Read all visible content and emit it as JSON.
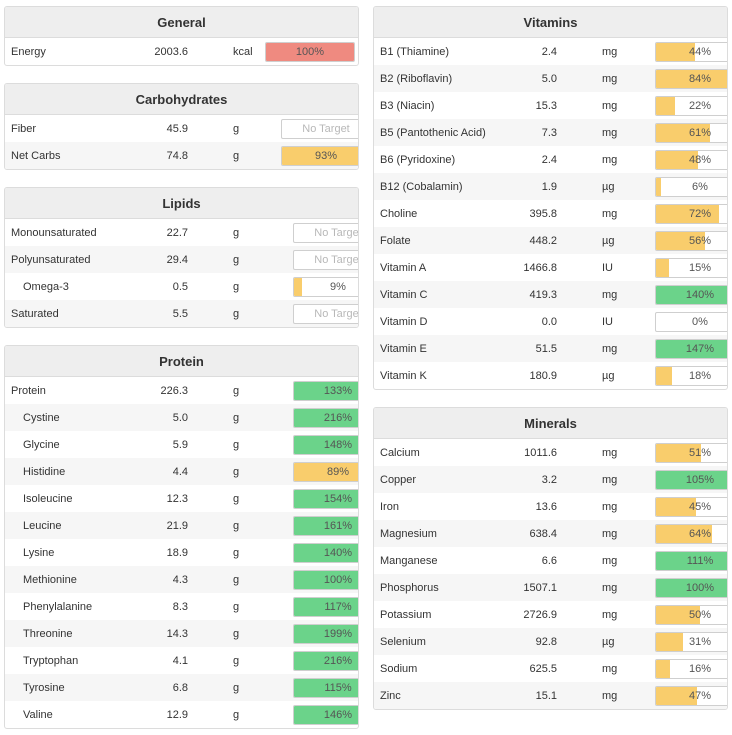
{
  "colors": {
    "over": "#ef8a80",
    "good": "#6bd38a",
    "partial": "#f9cd6c",
    "empty": "#ffffff",
    "border": "#dcdcdc",
    "header_bg": "#eeeeee"
  },
  "no_target_label": "No Target",
  "sections": {
    "general": {
      "title": "General",
      "rows": [
        {
          "name": "Energy",
          "amount": "2003.6",
          "unit": "kcal",
          "pct": 100,
          "label": "100%",
          "status": "over"
        }
      ]
    },
    "carbohydrates": {
      "title": "Carbohydrates",
      "rows": [
        {
          "name": "Fiber",
          "amount": "45.9",
          "unit": "g",
          "pct": null,
          "label": "No Target",
          "status": "notarget"
        },
        {
          "name": "Net Carbs",
          "amount": "74.8",
          "unit": "g",
          "pct": 93,
          "label": "93%",
          "status": "partial"
        }
      ]
    },
    "lipids": {
      "title": "Lipids",
      "rows": [
        {
          "name": "Monounsaturated",
          "amount": "22.7",
          "unit": "g",
          "pct": null,
          "label": "No Target",
          "status": "notarget"
        },
        {
          "name": "Polyunsaturated",
          "amount": "29.4",
          "unit": "g",
          "pct": null,
          "label": "No Target",
          "status": "notarget"
        },
        {
          "name": "Omega-3",
          "amount": "0.5",
          "unit": "g",
          "pct": 9,
          "label": "9%",
          "status": "partial",
          "indent": true
        },
        {
          "name": "Saturated",
          "amount": "5.5",
          "unit": "g",
          "pct": null,
          "label": "No Target",
          "status": "notarget"
        }
      ]
    },
    "protein": {
      "title": "Protein",
      "rows": [
        {
          "name": "Protein",
          "amount": "226.3",
          "unit": "g",
          "pct": 133,
          "label": "133%",
          "status": "good"
        },
        {
          "name": "Cystine",
          "amount": "5.0",
          "unit": "g",
          "pct": 216,
          "label": "216%",
          "status": "good",
          "indent": true
        },
        {
          "name": "Glycine",
          "amount": "5.9",
          "unit": "g",
          "pct": 148,
          "label": "148%",
          "status": "good",
          "indent": true
        },
        {
          "name": "Histidine",
          "amount": "4.4",
          "unit": "g",
          "pct": 89,
          "label": "89%",
          "status": "partial",
          "indent": true
        },
        {
          "name": "Isoleucine",
          "amount": "12.3",
          "unit": "g",
          "pct": 154,
          "label": "154%",
          "status": "good",
          "indent": true
        },
        {
          "name": "Leucine",
          "amount": "21.9",
          "unit": "g",
          "pct": 161,
          "label": "161%",
          "status": "good",
          "indent": true
        },
        {
          "name": "Lysine",
          "amount": "18.9",
          "unit": "g",
          "pct": 140,
          "label": "140%",
          "status": "good",
          "indent": true
        },
        {
          "name": "Methionine",
          "amount": "4.3",
          "unit": "g",
          "pct": 100,
          "label": "100%",
          "status": "good",
          "indent": true
        },
        {
          "name": "Phenylalanine",
          "amount": "8.3",
          "unit": "g",
          "pct": 117,
          "label": "117%",
          "status": "good",
          "indent": true
        },
        {
          "name": "Threonine",
          "amount": "14.3",
          "unit": "g",
          "pct": 199,
          "label": "199%",
          "status": "good",
          "indent": true
        },
        {
          "name": "Tryptophan",
          "amount": "4.1",
          "unit": "g",
          "pct": 216,
          "label": "216%",
          "status": "good",
          "indent": true
        },
        {
          "name": "Tyrosine",
          "amount": "6.8",
          "unit": "g",
          "pct": 115,
          "label": "115%",
          "status": "good",
          "indent": true
        },
        {
          "name": "Valine",
          "amount": "12.9",
          "unit": "g",
          "pct": 146,
          "label": "146%",
          "status": "good",
          "indent": true
        }
      ]
    },
    "vitamins": {
      "title": "Vitamins",
      "rows": [
        {
          "name": "B1 (Thiamine)",
          "amount": "2.4",
          "unit": "mg",
          "pct": 44,
          "label": "44%",
          "status": "partial"
        },
        {
          "name": "B2 (Riboflavin)",
          "amount": "5.0",
          "unit": "mg",
          "pct": 84,
          "label": "84%",
          "status": "partial"
        },
        {
          "name": "B3 (Niacin)",
          "amount": "15.3",
          "unit": "mg",
          "pct": 22,
          "label": "22%",
          "status": "partial"
        },
        {
          "name": "B5 (Pantothenic Acid)",
          "amount": "7.3",
          "unit": "mg",
          "pct": 61,
          "label": "61%",
          "status": "partial"
        },
        {
          "name": "B6 (Pyridoxine)",
          "amount": "2.4",
          "unit": "mg",
          "pct": 48,
          "label": "48%",
          "status": "partial"
        },
        {
          "name": "B12 (Cobalamin)",
          "amount": "1.9",
          "unit": "µg",
          "pct": 6,
          "label": "6%",
          "status": "partial"
        },
        {
          "name": "Choline",
          "amount": "395.8",
          "unit": "mg",
          "pct": 72,
          "label": "72%",
          "status": "partial"
        },
        {
          "name": "Folate",
          "amount": "448.2",
          "unit": "µg",
          "pct": 56,
          "label": "56%",
          "status": "partial"
        },
        {
          "name": "Vitamin A",
          "amount": "1466.8",
          "unit": "IU",
          "pct": 15,
          "label": "15%",
          "status": "partial"
        },
        {
          "name": "Vitamin C",
          "amount": "419.3",
          "unit": "mg",
          "pct": 140,
          "label": "140%",
          "status": "good"
        },
        {
          "name": "Vitamin D",
          "amount": "0.0",
          "unit": "IU",
          "pct": 0,
          "label": "0%",
          "status": "partial"
        },
        {
          "name": "Vitamin E",
          "amount": "51.5",
          "unit": "mg",
          "pct": 147,
          "label": "147%",
          "status": "good"
        },
        {
          "name": "Vitamin K",
          "amount": "180.9",
          "unit": "µg",
          "pct": 18,
          "label": "18%",
          "status": "partial"
        }
      ]
    },
    "minerals": {
      "title": "Minerals",
      "rows": [
        {
          "name": "Calcium",
          "amount": "1011.6",
          "unit": "mg",
          "pct": 51,
          "label": "51%",
          "status": "partial"
        },
        {
          "name": "Copper",
          "amount": "3.2",
          "unit": "mg",
          "pct": 105,
          "label": "105%",
          "status": "good"
        },
        {
          "name": "Iron",
          "amount": "13.6",
          "unit": "mg",
          "pct": 45,
          "label": "45%",
          "status": "partial"
        },
        {
          "name": "Magnesium",
          "amount": "638.4",
          "unit": "mg",
          "pct": 64,
          "label": "64%",
          "status": "partial"
        },
        {
          "name": "Manganese",
          "amount": "6.6",
          "unit": "mg",
          "pct": 111,
          "label": "111%",
          "status": "good"
        },
        {
          "name": "Phosphorus",
          "amount": "1507.1",
          "unit": "mg",
          "pct": 100,
          "label": "100%",
          "status": "good"
        },
        {
          "name": "Potassium",
          "amount": "2726.9",
          "unit": "mg",
          "pct": 50,
          "label": "50%",
          "status": "partial"
        },
        {
          "name": "Selenium",
          "amount": "92.8",
          "unit": "µg",
          "pct": 31,
          "label": "31%",
          "status": "partial"
        },
        {
          "name": "Sodium",
          "amount": "625.5",
          "unit": "mg",
          "pct": 16,
          "label": "16%",
          "status": "partial"
        },
        {
          "name": "Zinc",
          "amount": "15.1",
          "unit": "mg",
          "pct": 47,
          "label": "47%",
          "status": "partial"
        }
      ]
    }
  }
}
